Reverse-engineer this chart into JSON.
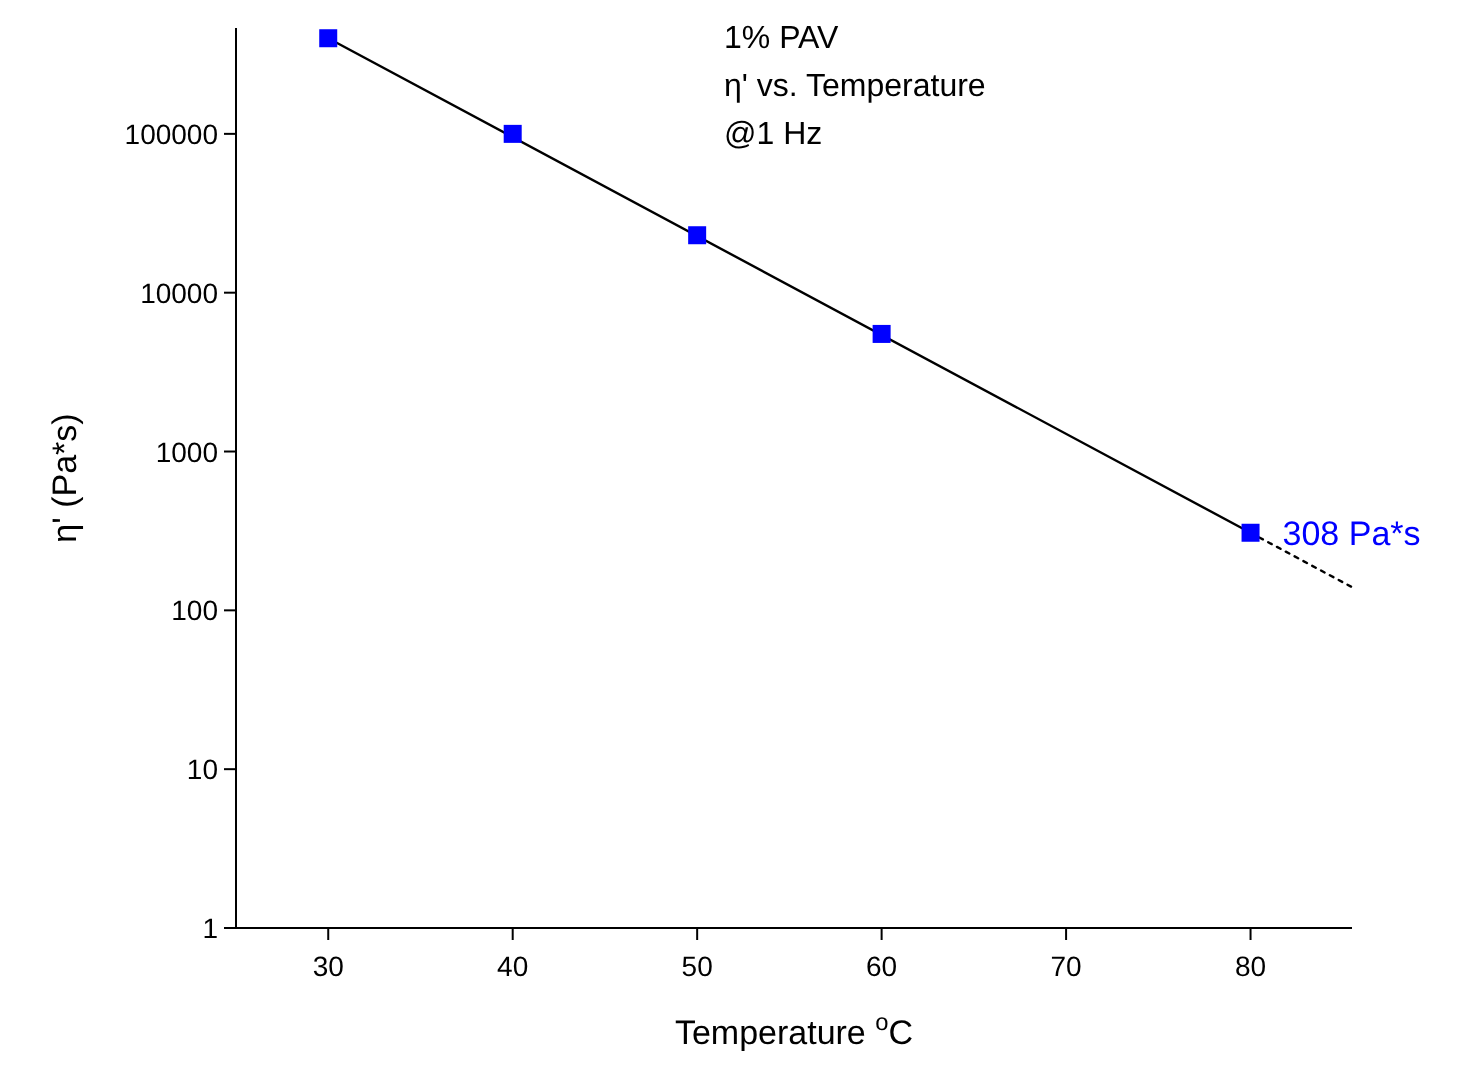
{
  "chart_data": {
    "type": "scatter",
    "title": "1% PAV",
    "subtitle": "η' vs. Temperature",
    "annotations": [
      "@1 Hz",
      {
        "text": "308 Pa*s",
        "x": 80,
        "y": 308
      }
    ],
    "xlabel": "Temperature $^{o}$C",
    "ylabel": "η' (Pa*s)",
    "log": "y",
    "marker": "square",
    "grid": false,
    "xlim": [
      25,
      85.5
    ],
    "xticks": [
      30,
      40,
      50,
      60,
      70,
      80
    ],
    "ylim": [
      1,
      464000
    ],
    "yticks": [
      1,
      10,
      100,
      1000,
      10000,
      100000
    ],
    "x": [
      30,
      40,
      50,
      60,
      80
    ],
    "series": [
      {
        "type": "line",
        "color": "#000000",
        "x": [
          30,
          80
        ],
        "values": [
          400000,
          308
        ],
        "line_style": "solid",
        "marker": "none"
      },
      {
        "type": "line",
        "color": "#000000",
        "x": [
          80,
          85.5
        ],
        "values": [
          308,
          140
        ],
        "line_style": "dotted",
        "marker": "none"
      },
      {
        "color": "#0000ff",
        "values": [
          400000,
          100000,
          23000,
          5500,
          308
        ]
      }
    ]
  }
}
